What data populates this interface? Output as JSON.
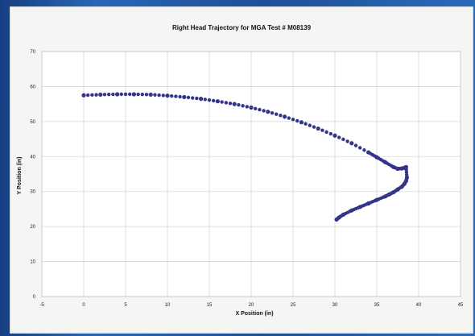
{
  "chart_data": {
    "type": "scatter",
    "title": "Right Head Trajectory for MGA Test # M08139",
    "xlabel": "X Position (in)",
    "ylabel": "Y Position (in)",
    "xlim": [
      -5,
      45
    ],
    "ylim": [
      0,
      70
    ],
    "x_ticks": [
      "-5",
      "0",
      "5",
      "10",
      "15",
      "20",
      "25",
      "30",
      "35",
      "40",
      "45"
    ],
    "y_ticks": [
      "0",
      "10",
      "20",
      "30",
      "40",
      "50",
      "60",
      "70"
    ],
    "grid": true,
    "legend": "none",
    "marker_color": "#34348a",
    "series": [
      {
        "x": [
          0,
          2,
          4,
          6,
          8,
          10,
          12,
          14,
          16,
          18,
          20,
          22,
          24,
          26,
          28,
          30,
          32,
          34,
          35,
          36,
          37,
          37.5,
          38,
          38.3,
          38.5,
          38.6,
          38.5,
          38.3,
          38,
          37.5,
          37,
          36.5,
          36,
          35,
          34,
          33,
          32,
          31,
          30.5,
          30.2
        ],
        "y": [
          57.5,
          57.7,
          57.8,
          57.8,
          57.7,
          57.4,
          57,
          56.5,
          55.8,
          55,
          54,
          52.8,
          51.4,
          49.8,
          48,
          46,
          43.8,
          41.2,
          39.8,
          38.4,
          37,
          36.5,
          36.6,
          36.8,
          37,
          34,
          33,
          32.2,
          31.4,
          30.6,
          29.8,
          29.2,
          28.6,
          27.6,
          26.6,
          25.6,
          24.6,
          23.4,
          22.6,
          22
        ]
      }
    ]
  }
}
